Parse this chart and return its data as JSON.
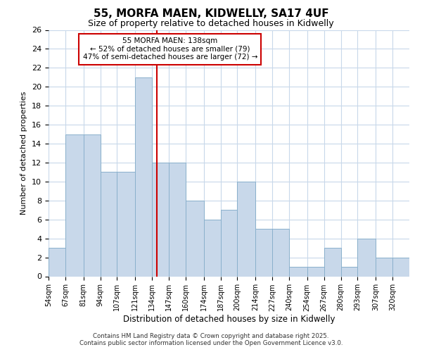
{
  "title1": "55, MORFA MAEN, KIDWELLY, SA17 4UF",
  "title2": "Size of property relative to detached houses in Kidwelly",
  "xlabel": "Distribution of detached houses by size in Kidwelly",
  "ylabel": "Number of detached properties",
  "categories": [
    "54sqm",
    "67sqm",
    "81sqm",
    "94sqm",
    "107sqm",
    "121sqm",
    "134sqm",
    "147sqm",
    "160sqm",
    "174sqm",
    "187sqm",
    "200sqm",
    "214sqm",
    "227sqm",
    "240sqm",
    "254sqm",
    "267sqm",
    "280sqm",
    "293sqm",
    "307sqm",
    "320sqm"
  ],
  "values": [
    3,
    15,
    15,
    11,
    11,
    21,
    12,
    12,
    8,
    6,
    7,
    10,
    5,
    5,
    1,
    1,
    3,
    1,
    4,
    2,
    2
  ],
  "bar_color": "#c8d8ea",
  "bar_edge_color": "#8ab0cc",
  "vline_color": "#cc0000",
  "annotation_box_color": "#cc0000",
  "background_color": "#ffffff",
  "grid_color": "#c8d8ea",
  "ylim": [
    0,
    26
  ],
  "yticks": [
    0,
    2,
    4,
    6,
    8,
    10,
    12,
    14,
    16,
    18,
    20,
    22,
    24,
    26
  ],
  "annotation_line1": "55 MORFA MAEN: 138sqm",
  "annotation_line2": "← 52% of detached houses are smaller (79)",
  "annotation_line3": "47% of semi-detached houses are larger (72) →",
  "footer_line1": "Contains HM Land Registry data © Crown copyright and database right 2025.",
  "footer_line2": "Contains public sector information licensed under the Open Government Licence v3.0."
}
